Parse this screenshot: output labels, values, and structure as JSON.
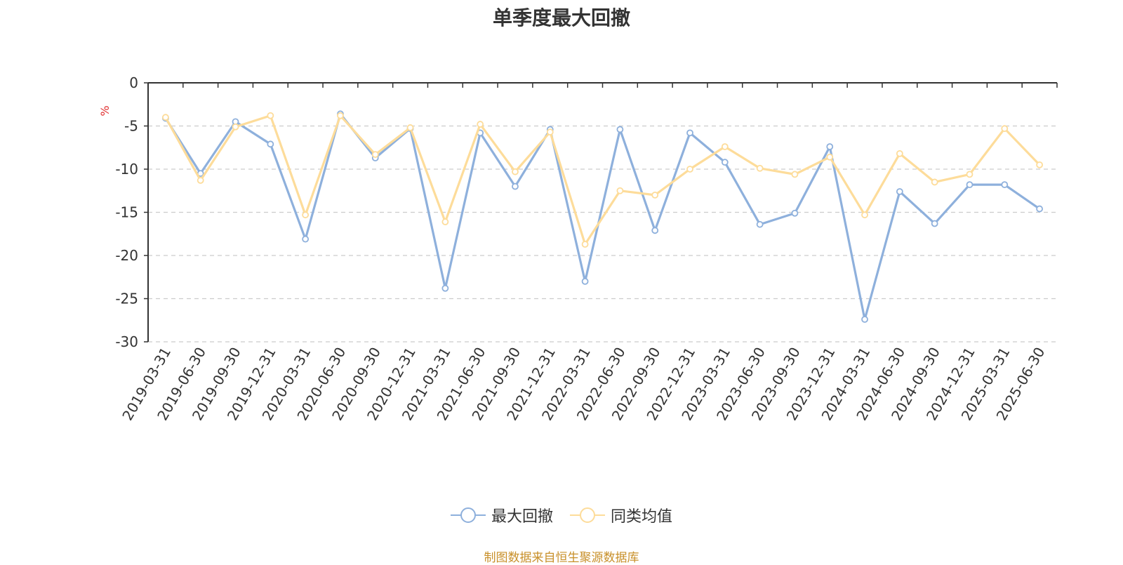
{
  "title": "单季度最大回撤",
  "source": "制图数据来自恒生聚源数据库",
  "chart_data": {
    "type": "line",
    "ylabel": "%",
    "ylim": [
      -30,
      0
    ],
    "yticks": [
      0,
      -5,
      -10,
      -15,
      -20,
      -25,
      -30
    ],
    "grid": true,
    "legend_position": "bottom",
    "categories": [
      "2019-03-31",
      "2019-06-30",
      "2019-09-30",
      "2019-12-31",
      "2020-03-31",
      "2020-06-30",
      "2020-09-30",
      "2020-12-31",
      "2021-03-31",
      "2021-06-30",
      "2021-09-30",
      "2021-12-31",
      "2022-03-31",
      "2022-06-30",
      "2022-09-30",
      "2022-12-31",
      "2023-03-31",
      "2023-06-30",
      "2023-09-30",
      "2023-12-31",
      "2024-03-31",
      "2024-06-30",
      "2024-09-30",
      "2024-12-31",
      "2025-03-31",
      "2025-06-30"
    ],
    "series": [
      {
        "name": "最大回撤",
        "color": "#8eb0dc",
        "values": [
          -4.1,
          -10.5,
          -4.5,
          -7.1,
          -18.1,
          -3.6,
          -8.7,
          -5.3,
          -23.8,
          -5.8,
          -12.0,
          -5.4,
          -23.0,
          -5.4,
          -17.1,
          -5.8,
          -9.2,
          -16.4,
          -15.1,
          -7.4,
          -27.4,
          -12.6,
          -16.3,
          -11.8,
          -11.8,
          -14.6
        ]
      },
      {
        "name": "同类均值",
        "color": "#fddc9a",
        "values": [
          -4.0,
          -11.3,
          -5.1,
          -3.8,
          -15.3,
          -3.8,
          -8.3,
          -5.2,
          -16.1,
          -4.8,
          -10.3,
          -5.7,
          -18.7,
          -12.5,
          -13.0,
          -10.0,
          -7.4,
          -9.9,
          -10.6,
          -8.6,
          -15.3,
          -8.2,
          -11.5,
          -10.6,
          -5.3,
          -9.5
        ]
      }
    ]
  }
}
